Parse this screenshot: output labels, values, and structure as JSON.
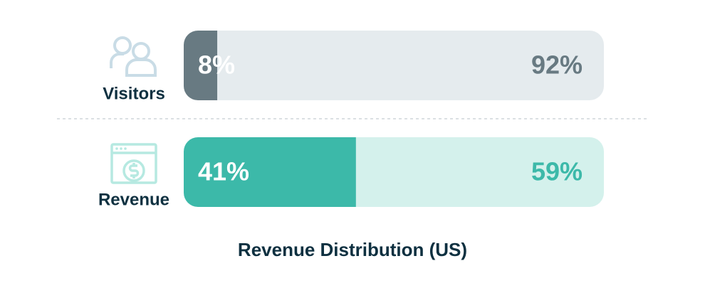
{
  "chart_data": {
    "type": "bar",
    "orientation": "horizontal",
    "stacked": true,
    "title": "Revenue Distribution (US)",
    "categories": [
      "Visitors",
      "Revenue"
    ],
    "xlim": [
      0,
      100
    ],
    "series": [
      {
        "values": [
          8,
          41
        ],
        "value_labels": [
          "8%",
          "41%"
        ],
        "colors": [
          "#687a82",
          "#3cb9a9"
        ]
      },
      {
        "values": [
          92,
          59
        ],
        "value_labels": [
          "92%",
          "59%"
        ],
        "colors": [
          "#e5ebee",
          "#d4f1ec"
        ]
      }
    ]
  }
}
